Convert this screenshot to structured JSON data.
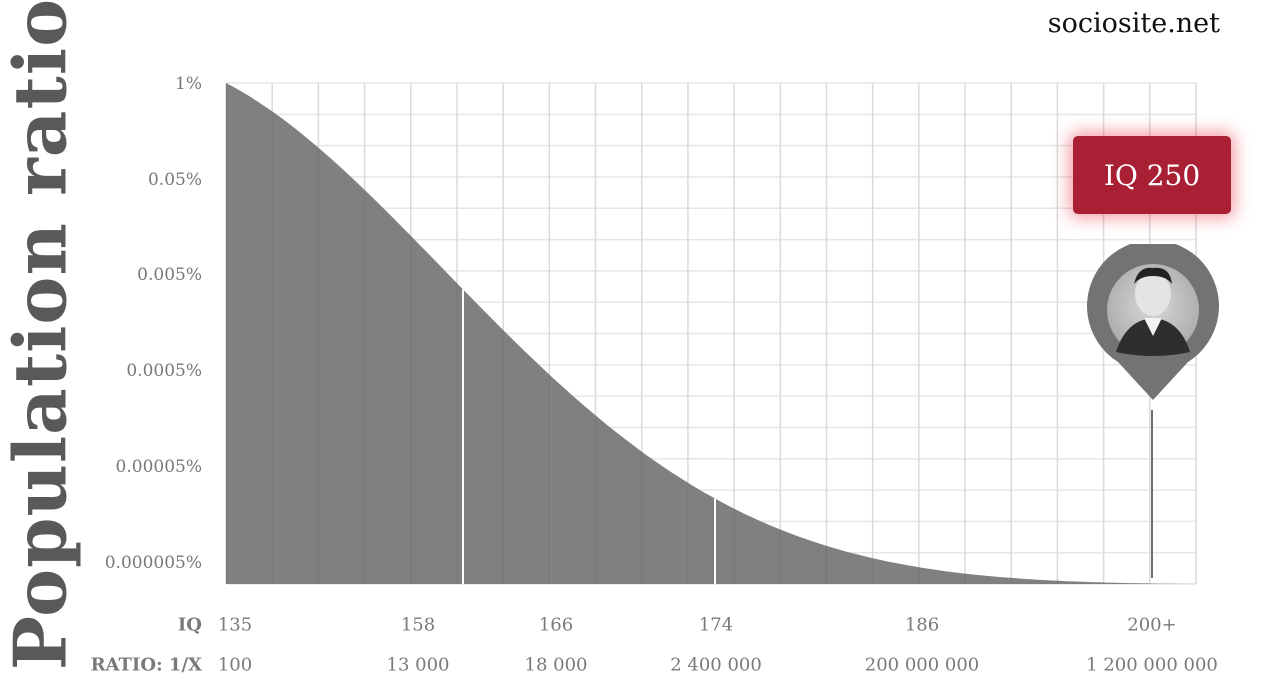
{
  "brand": "sociosite.net",
  "chart_data": {
    "type": "area",
    "ylabel": "Population ratio",
    "y_ticks": [
      "1%",
      "0.05%",
      "0.005%",
      "0.0005%",
      "0.00005%",
      "0.000005%"
    ],
    "x_rows": [
      {
        "label": "IQ",
        "values": [
          "135",
          "158",
          "166",
          "174",
          "186",
          "200+"
        ]
      },
      {
        "label": "RATIO: 1/X",
        "values": [
          "100",
          "13 000",
          "18 000",
          "2 400 000",
          "200 000 000",
          "1 200 000 000"
        ]
      }
    ],
    "reference_lines_at_iq": [
      "158",
      "174"
    ],
    "annotation": {
      "label": "IQ 250",
      "position_iq": "200+",
      "marker": "portrait-pin"
    },
    "grid": true,
    "colors": {
      "fill": "#808080",
      "grid": "#e6e6e6",
      "badge": "#a91f34"
    }
  }
}
